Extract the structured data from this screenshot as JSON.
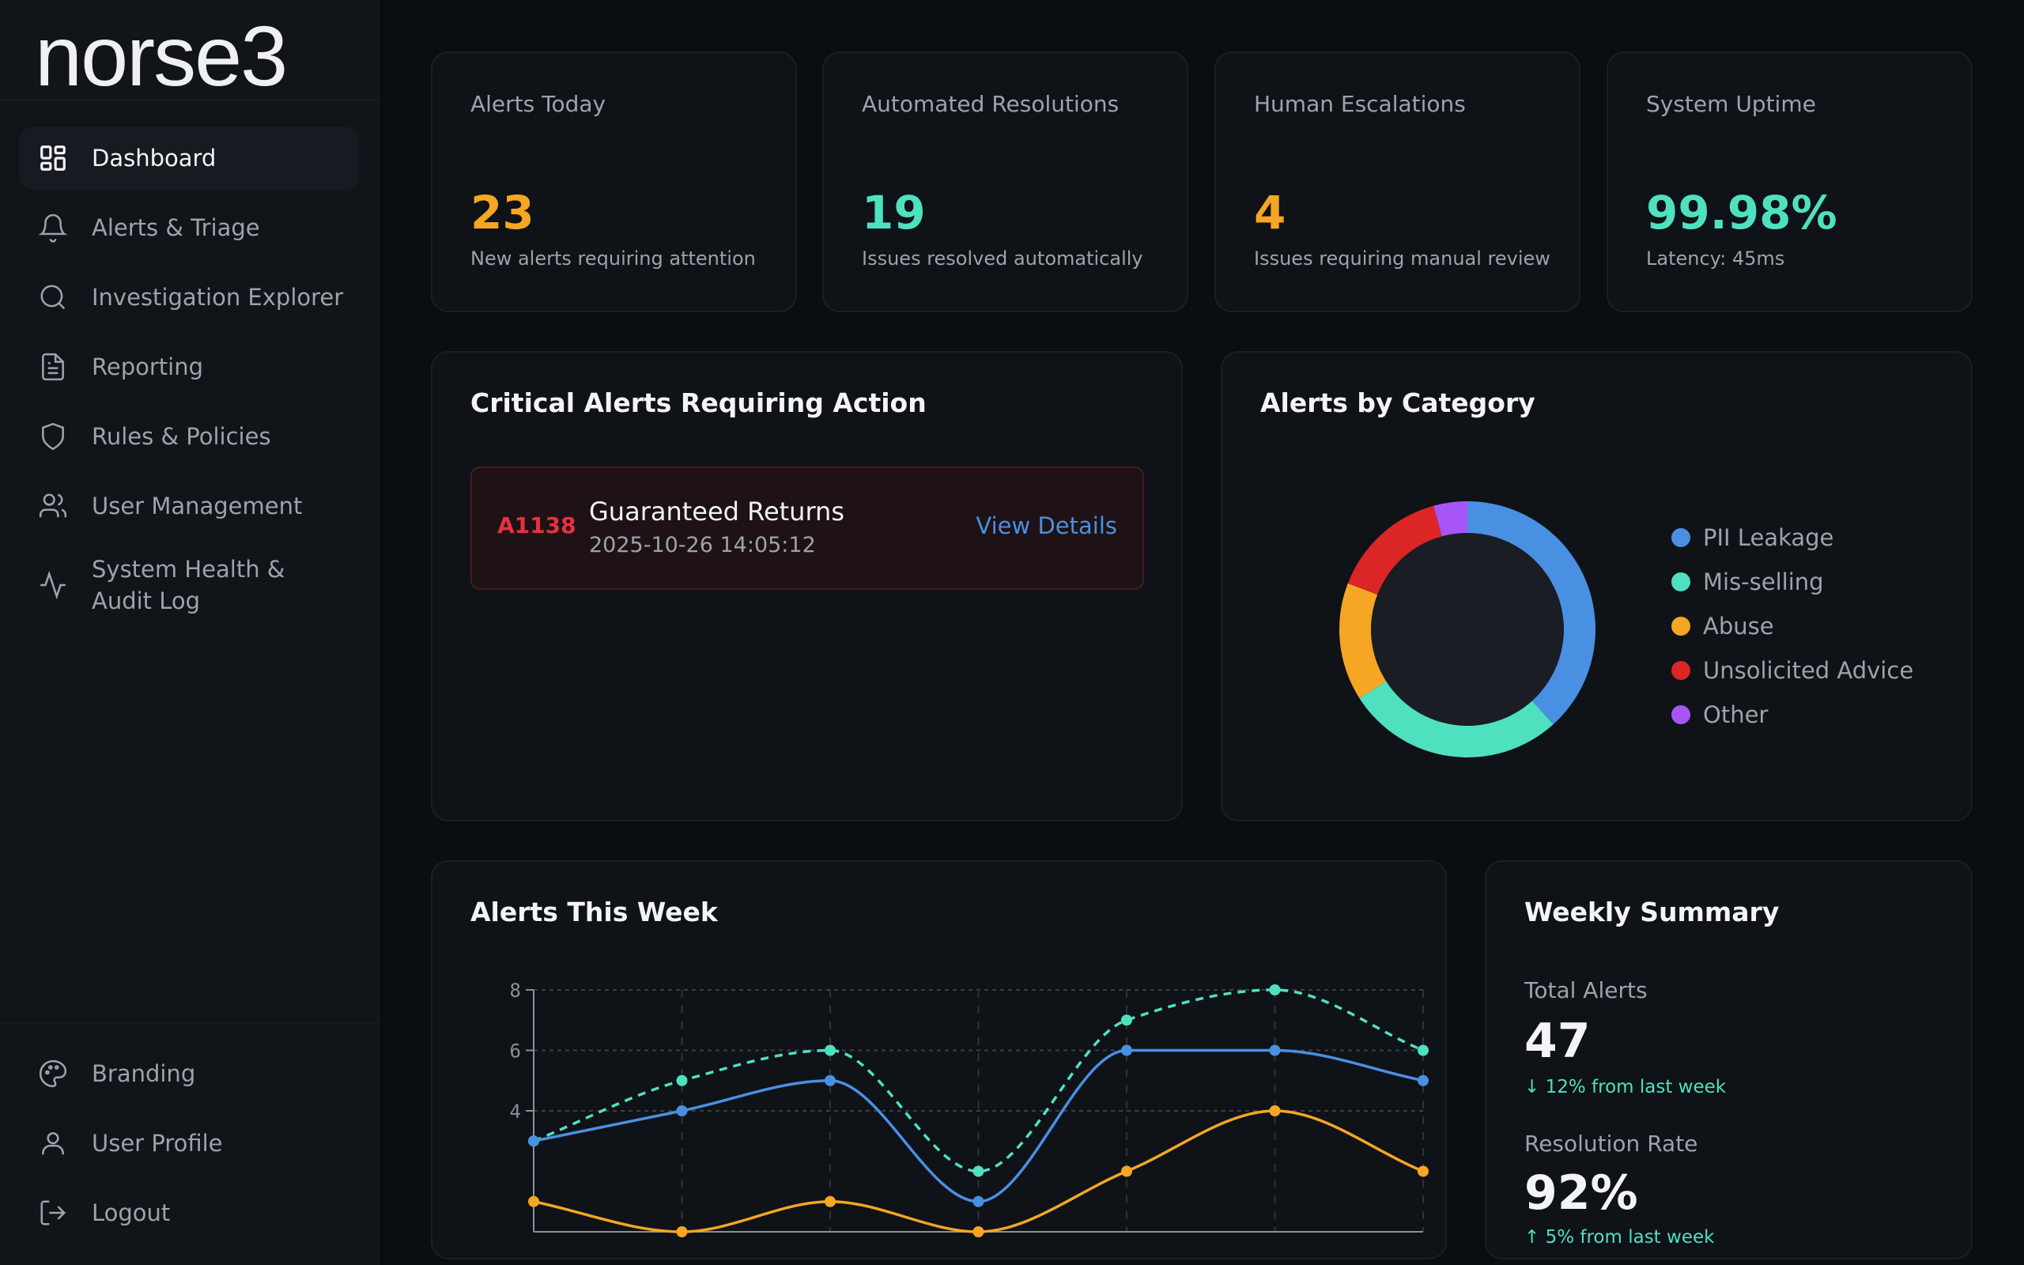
{
  "app": {
    "logo": "norse3"
  },
  "sidebar": {
    "items": [
      {
        "label": "Dashboard",
        "icon": "dashboard-grid-icon",
        "active": true
      },
      {
        "label": "Alerts & Triage",
        "icon": "bell-icon"
      },
      {
        "label": "Investigation Explorer",
        "icon": "search-icon"
      },
      {
        "label": "Reporting",
        "icon": "document-icon"
      },
      {
        "label": "Rules & Policies",
        "icon": "shield-icon"
      },
      {
        "label": "User Management",
        "icon": "users-icon"
      },
      {
        "label": "System Health & Audit Log",
        "icon": "activity-icon"
      }
    ],
    "bottom": [
      {
        "label": "Branding",
        "icon": "palette-icon"
      },
      {
        "label": "User Profile",
        "icon": "user-icon"
      },
      {
        "label": "Logout",
        "icon": "logout-icon"
      }
    ]
  },
  "stats": [
    {
      "label": "Alerts Today",
      "value": "23",
      "sub": "New alerts requiring attention",
      "color": "#f5a623"
    },
    {
      "label": "Automated Resolutions",
      "value": "19",
      "sub": "Issues resolved automatically",
      "color": "#4fe0c0"
    },
    {
      "label": "Human Escalations",
      "value": "4",
      "sub": "Issues requiring manual review",
      "color": "#f5a623"
    },
    {
      "label": "System Uptime",
      "value": "99.98%",
      "sub": "Latency: 45ms",
      "color": "#4fe0c0"
    }
  ],
  "critical": {
    "title": "Critical Alerts Requiring Action",
    "alerts": [
      {
        "id": "A1138",
        "title": "Guaranteed Returns",
        "time": "2025-10-26 14:05:12",
        "action": "View Details"
      }
    ]
  },
  "category": {
    "title": "Alerts by Category"
  },
  "weekly_chart": {
    "title": "Alerts This Week"
  },
  "summary": {
    "title": "Weekly Summary",
    "total_label": "Total Alerts",
    "total_value": "47",
    "total_change": "↓ 12% from last week",
    "rate_label": "Resolution Rate",
    "rate_value": "92%",
    "rate_change": "↑ 5% from last week"
  },
  "chart_data": [
    {
      "type": "pie",
      "title": "Alerts by Category",
      "donut": true,
      "categories": [
        "PII Leakage",
        "Mis-selling",
        "Abuse",
        "Unsolicited Advice",
        "Other"
      ],
      "values": [
        18,
        13,
        7,
        7,
        2
      ],
      "colors": [
        "#4a90e2",
        "#4fe0c0",
        "#f5a623",
        "#dc2626",
        "#a855f7"
      ],
      "legend": "right"
    },
    {
      "type": "line",
      "title": "Alerts This Week",
      "ylim": [
        0,
        8
      ],
      "yticks": [
        4,
        6,
        8
      ],
      "grid": true,
      "x": [
        0,
        1,
        2,
        3,
        4,
        5,
        6
      ],
      "series": [
        {
          "color": "#4fe0c0",
          "dashed": true,
          "values": [
            3,
            5,
            6,
            2,
            7,
            8,
            6
          ]
        },
        {
          "color": "#4a90e2",
          "dashed": false,
          "values": [
            3,
            4,
            5,
            1,
            6,
            6,
            5
          ]
        },
        {
          "color": "#f5a623",
          "dashed": false,
          "values": [
            1,
            0,
            1,
            0,
            2,
            4,
            2
          ]
        }
      ]
    }
  ]
}
